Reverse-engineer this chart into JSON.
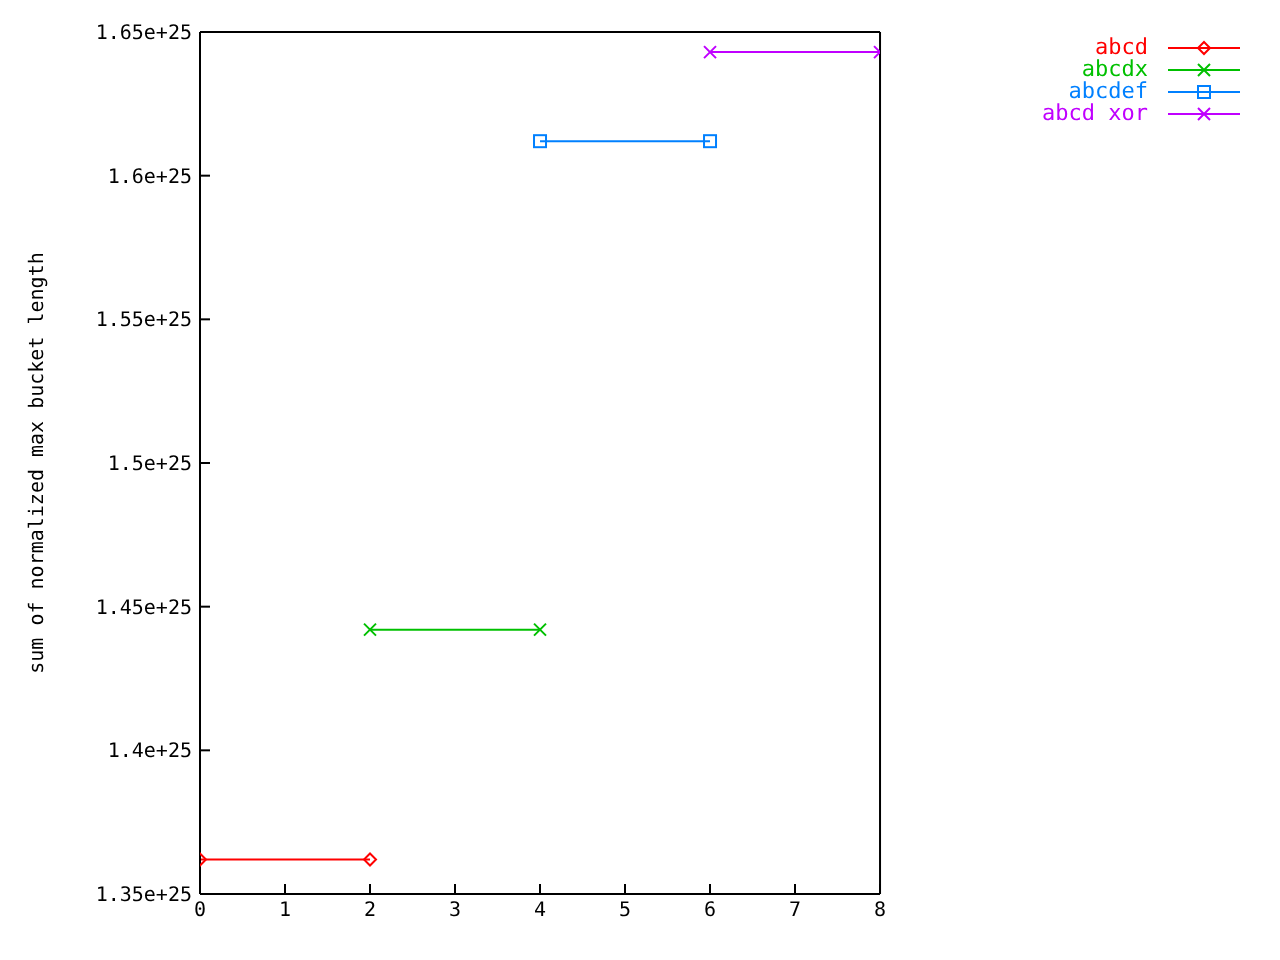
{
  "chart_data": {
    "type": "line",
    "ylabel": "sum of normalized max bucket length",
    "xlim": [
      0,
      8
    ],
    "xticks": [
      0,
      1,
      2,
      3,
      4,
      5,
      6,
      7,
      8
    ],
    "ylim": [
      1.35e+25,
      1.65e+25
    ],
    "yticks": [
      {
        "value": 1.35e+25,
        "label": "1.35e+25"
      },
      {
        "value": 1.4e+25,
        "label": "1.4e+25"
      },
      {
        "value": 1.45e+25,
        "label": "1.45e+25"
      },
      {
        "value": 1.5e+25,
        "label": "1.5e+25"
      },
      {
        "value": 1.55e+25,
        "label": "1.55e+25"
      },
      {
        "value": 1.6e+25,
        "label": "1.6e+25"
      },
      {
        "value": 1.65e+25,
        "label": "1.65e+25"
      }
    ],
    "series": [
      {
        "name": "abcd",
        "color": "#ff0000",
        "x": [
          0,
          2
        ],
        "values": [
          1.362e+25,
          1.362e+25
        ],
        "marker": "diamond"
      },
      {
        "name": "abcdx",
        "color": "#00c000",
        "x": [
          2,
          4
        ],
        "values": [
          1.442e+25,
          1.442e+25
        ],
        "marker": "cross"
      },
      {
        "name": "abcdef",
        "color": "#0080ff",
        "x": [
          4,
          6
        ],
        "values": [
          1.612e+25,
          1.612e+25
        ],
        "marker": "square"
      },
      {
        "name": "abcd xor",
        "color": "#c000ff",
        "x": [
          6,
          8
        ],
        "values": [
          1.643e+25,
          1.643e+25
        ],
        "marker": "cross"
      }
    ],
    "legend": "top right"
  }
}
